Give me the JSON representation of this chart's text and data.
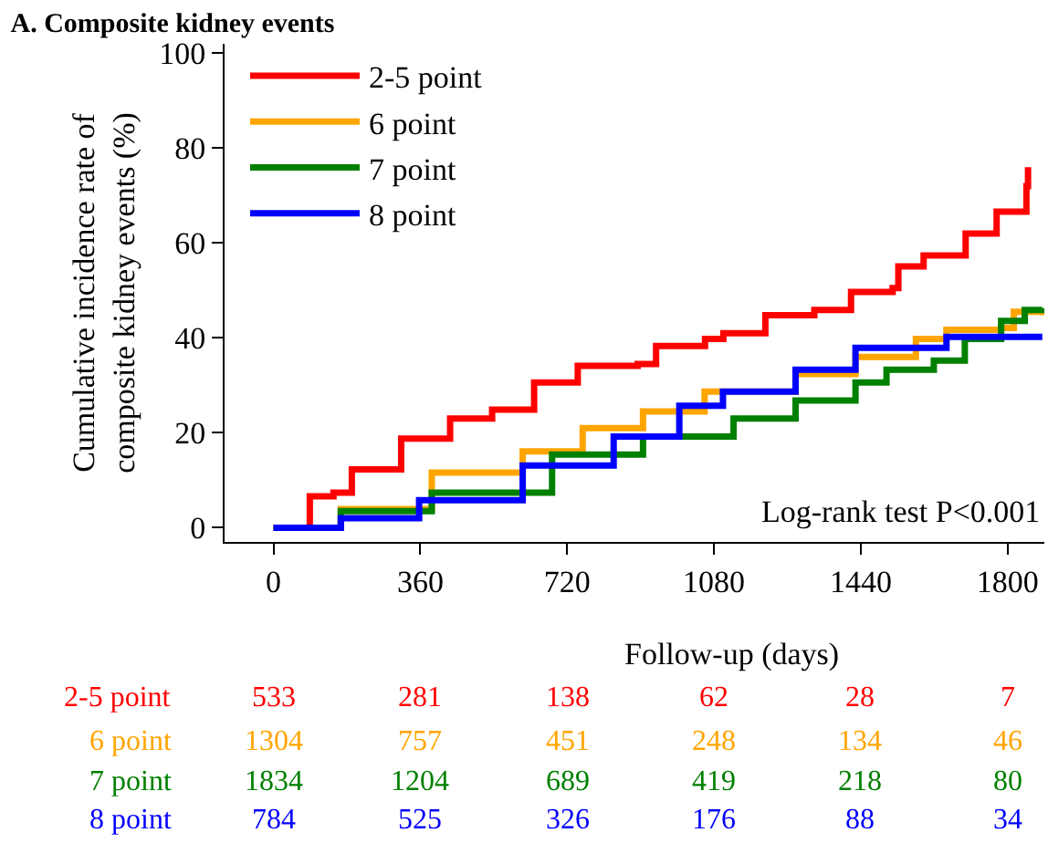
{
  "chart_data": {
    "type": "step",
    "title": "A. Composite kidney events",
    "xlabel": "Follow-up (days)",
    "ylabel": "Cumulative incidence rate of\ncomposite kidney events (%)",
    "xlim": [
      -120,
      1890
    ],
    "ylim": [
      -3,
      102
    ],
    "xticks": [
      0,
      360,
      720,
      1080,
      1440,
      1800
    ],
    "yticks": [
      0,
      20,
      40,
      60,
      80,
      100
    ],
    "legend": "top left",
    "marker": "none",
    "line_style": "solid",
    "series": [
      {
        "name": "2-5 point",
        "color": "#ff0000",
        "x": [
          0,
          89,
          147,
          192,
          313,
          433,
          536,
          639,
          746,
          893,
          938,
          1058,
          1103,
          1206,
          1326,
          1416,
          1518,
          1532,
          1594,
          1697,
          1773,
          1844,
          1846,
          1850
        ],
        "values": [
          0,
          6.6,
          7.4,
          12.3,
          18.8,
          23,
          24.9,
          30.6,
          34.1,
          34.5,
          38.3,
          39.8,
          41,
          44.8,
          45.9,
          49.7,
          50.5,
          55.1,
          57.4,
          62,
          66.6,
          66.6,
          72,
          76
        ]
      },
      {
        "name": "6 point",
        "color": "#ffa500",
        "x": [
          0,
          165,
          388,
          611,
          758,
          906,
          1057,
          1280,
          1427,
          1575,
          1650,
          1784,
          1815,
          1885
        ],
        "values": [
          0,
          3.9,
          11.6,
          16.1,
          21,
          24.5,
          28.7,
          32.4,
          36,
          39.8,
          41.7,
          42.1,
          45.5,
          44.8
        ]
      },
      {
        "name": "7 point",
        "color": "#008000",
        "x": [
          0,
          165,
          388,
          683,
          906,
          1128,
          1280,
          1427,
          1503,
          1619,
          1695,
          1784,
          1842,
          1885
        ],
        "values": [
          0,
          3.5,
          7.4,
          15.4,
          19.2,
          23,
          26.8,
          30.6,
          33.3,
          35.2,
          39.8,
          43.6,
          45.9,
          46.3
        ]
      },
      {
        "name": "8 point",
        "color": "#0000ff",
        "x": [
          0,
          165,
          357,
          611,
          834,
          995,
          1102,
          1280,
          1427,
          1628,
          1650,
          1885
        ],
        "values": [
          0,
          2,
          5.8,
          13.1,
          19.2,
          25.7,
          28.7,
          33.3,
          37.9,
          37.9,
          40.2,
          40.2
        ]
      }
    ],
    "annotations": [
      "Log-rank test P<0.001",
      "533",
      "281",
      "138",
      "62",
      "28",
      "7",
      "1304",
      "757",
      "451",
      "248",
      "134",
      "46",
      "1834",
      "1204",
      "689",
      "419",
      "218",
      "80",
      "784",
      "525",
      "326",
      "176",
      "88",
      "34"
    ]
  }
}
